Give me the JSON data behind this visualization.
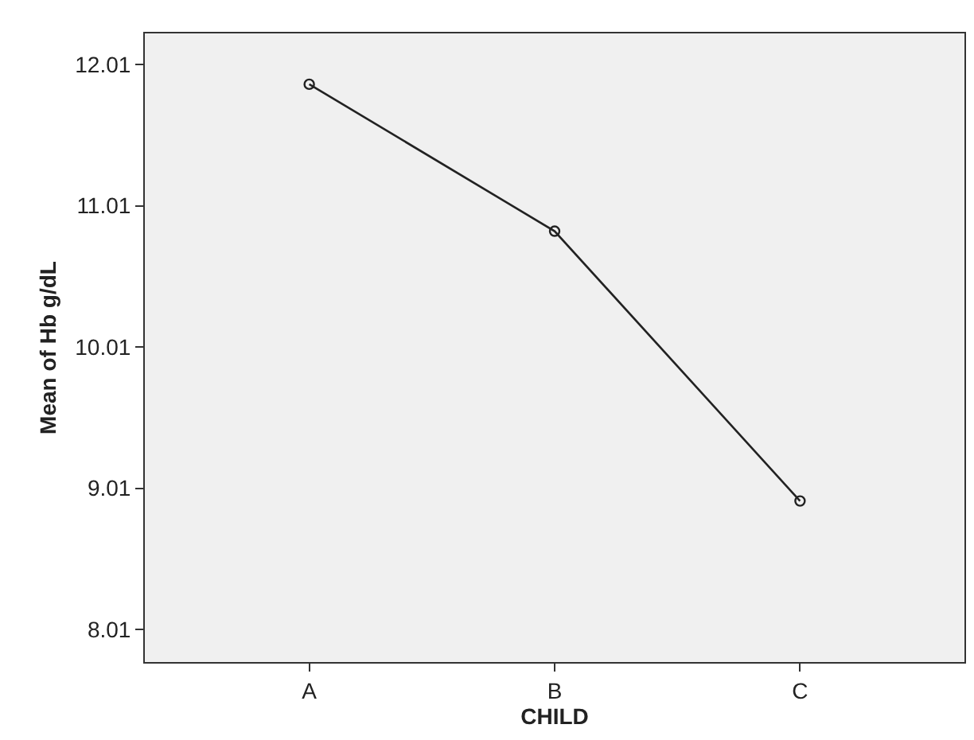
{
  "chart_data": {
    "type": "line",
    "xlabel": "CHILD",
    "ylabel": "Mean of Hb g/dL",
    "categories": [
      "A",
      "B",
      "C"
    ],
    "series": [
      {
        "color": "#222222",
        "values": [
          11.87,
          10.83,
          8.92
        ]
      }
    ],
    "ylim": [
      7.78,
      12.23
    ],
    "yticks": [
      8.01,
      9.01,
      10.01,
      11.01,
      12.01
    ],
    "marker": "circle",
    "line_style": "solid",
    "grid": false,
    "legend": false
  }
}
